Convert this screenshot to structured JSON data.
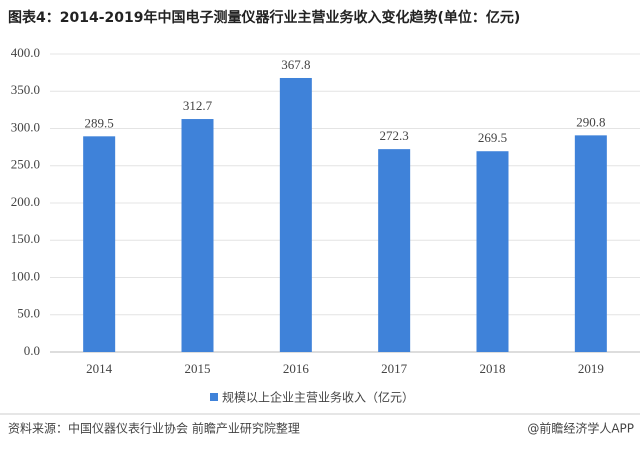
{
  "chart_data": {
    "type": "bar",
    "title": "图表4：2014-2019年中国电子测量仪器行业主营业务收入变化趋势(单位：亿元)",
    "categories": [
      "2014",
      "2015",
      "2016",
      "2017",
      "2018",
      "2019"
    ],
    "series": [
      {
        "name": "规模以上企业主营业务收入（亿元）",
        "color": "#3f82d9",
        "values": [
          289.5,
          312.7,
          367.8,
          272.3,
          269.5,
          290.8
        ]
      }
    ],
    "ylim": [
      0,
      400
    ],
    "yticks": [
      {
        "value": 0,
        "label": "0.0"
      },
      {
        "value": 50,
        "label": "50.0"
      },
      {
        "value": 100,
        "label": "100.0"
      },
      {
        "value": 150,
        "label": "150.0"
      },
      {
        "value": 200,
        "label": "200.0"
      },
      {
        "value": 250,
        "label": "250.0"
      },
      {
        "value": 300,
        "label": "300.0"
      },
      {
        "value": 350,
        "label": "350.0"
      },
      {
        "value": 400,
        "label": "400.0"
      }
    ],
    "grid": true,
    "source": "资料来源：中国仪器仪表行业协会 前瞻产业研究院整理",
    "credit": "@前瞻经济学人APP"
  }
}
